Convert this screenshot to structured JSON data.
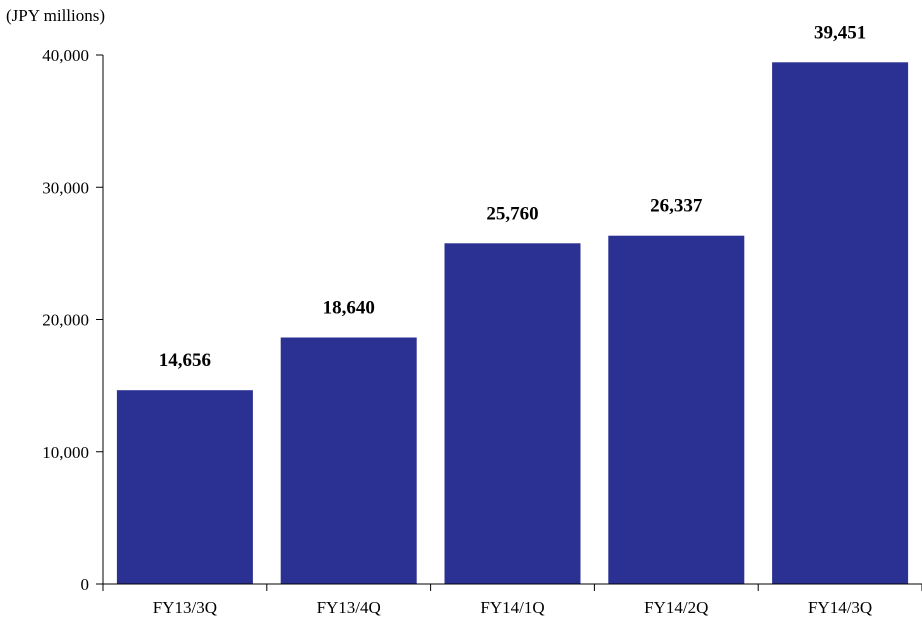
{
  "chart_data": {
    "type": "bar",
    "unit_label": "(JPY millions)",
    "categories": [
      "FY13/3Q",
      "FY13/4Q",
      "FY14/1Q",
      "FY14/2Q",
      "FY14/3Q"
    ],
    "values": [
      14656,
      18640,
      25760,
      26337,
      39451
    ],
    "value_labels": [
      "14,656",
      "18,640",
      "25,760",
      "26,337",
      "39,451"
    ],
    "yticks": [
      0,
      10000,
      20000,
      30000,
      40000
    ],
    "ytick_labels": [
      "0",
      "10,000",
      "20,000",
      "30,000",
      "40,000"
    ],
    "ylim": [
      0,
      40000
    ],
    "title": "",
    "xlabel": "",
    "ylabel": "",
    "grid": false,
    "legend": false,
    "bar_color": "#2B3192",
    "axis_color": "#000000",
    "text_color": "#000000"
  }
}
